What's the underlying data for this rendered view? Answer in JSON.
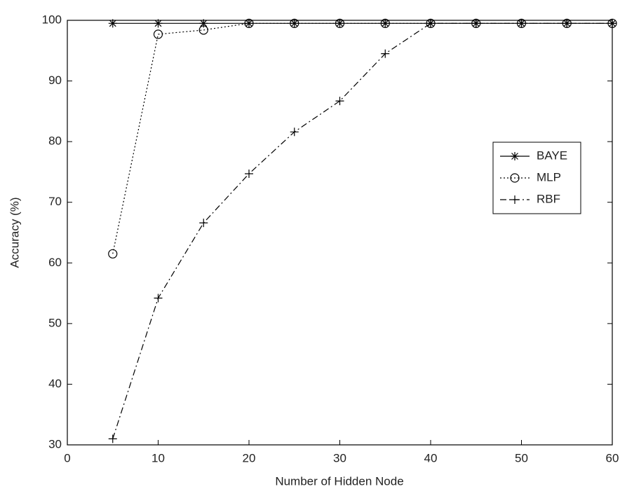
{
  "chart_data": {
    "type": "line",
    "xlabel": "Number of Hidden Node",
    "ylabel": "Accuracy (%)",
    "x": [
      5,
      10,
      15,
      20,
      25,
      30,
      35,
      40,
      45,
      50,
      55,
      60
    ],
    "series": [
      {
        "name": "BAYE",
        "color": "#000000",
        "marker": "star",
        "dash": "solid",
        "values": [
          99.5,
          99.5,
          99.5,
          99.5,
          99.5,
          99.5,
          99.5,
          99.5,
          99.5,
          99.5,
          99.5,
          99.5
        ]
      },
      {
        "name": "MLP",
        "color": "#000000",
        "marker": "circle",
        "dash": "dotted",
        "values": [
          61.5,
          97.7,
          98.4,
          99.5,
          99.5,
          99.5,
          99.5,
          99.5,
          99.5,
          99.5,
          99.5,
          99.5
        ]
      },
      {
        "name": "RBF",
        "color": "#000000",
        "marker": "plus",
        "dash": "dashdot",
        "values": [
          31,
          54.2,
          66.6,
          74.7,
          81.6,
          86.7,
          94.5,
          99.5,
          99.5,
          99.5,
          99.5,
          99.5
        ]
      }
    ],
    "xlim": [
      0,
      60
    ],
    "xticks": [
      0,
      10,
      20,
      30,
      40,
      50,
      60
    ],
    "ylim": [
      30,
      100
    ],
    "yticks": [
      30,
      40,
      50,
      60,
      70,
      80,
      90,
      100
    ],
    "grid": false,
    "legend_position": "right"
  }
}
